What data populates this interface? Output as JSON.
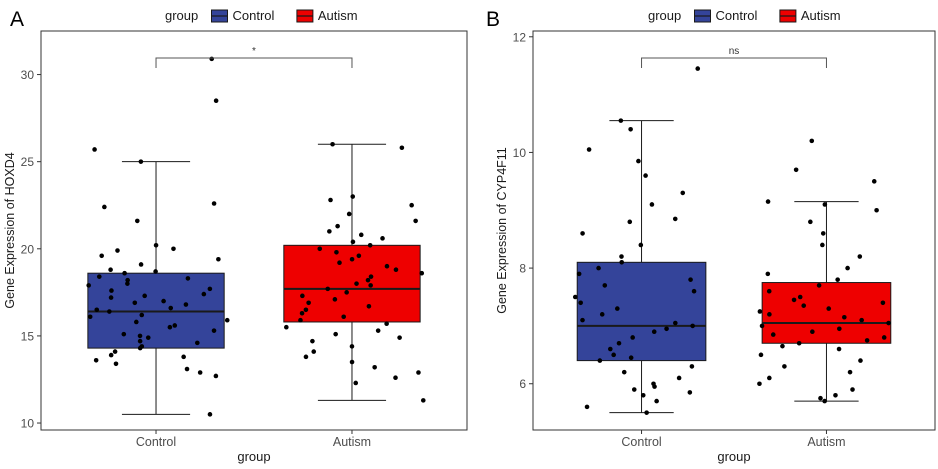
{
  "chart_data": [
    {
      "panel_label": "A",
      "type": "box",
      "xlabel": "group",
      "ylabel": "Gene Expression of HOXD4",
      "legend": {
        "title": "group",
        "placement": "top",
        "entries": [
          "Control",
          "Autism"
        ]
      },
      "categories": [
        "Control",
        "Autism"
      ],
      "colors": [
        "#34449a",
        "#ee0000"
      ],
      "ylim": [
        9.6,
        32.5
      ],
      "yticks": [
        10,
        15,
        20,
        25,
        30
      ],
      "significance": "*",
      "boxes": [
        {
          "name": "Control",
          "min": 10.5,
          "q1": 14.3,
          "median": 16.4,
          "q3": 18.6,
          "max": 25.0
        },
        {
          "name": "Autism",
          "min": 11.3,
          "q1": 15.8,
          "median": 17.7,
          "q3": 20.2,
          "max": 26.0
        }
      ],
      "points": [
        [
          30.9,
          28.5,
          25.7,
          25.0,
          22.6,
          22.4,
          21.6,
          20.2,
          20.0,
          19.9,
          19.6,
          19.4,
          19.1,
          18.8,
          18.7,
          18.6,
          18.4,
          18.3,
          18.2,
          18.0,
          17.9,
          17.7,
          17.6,
          17.4,
          17.3,
          17.2,
          17.0,
          16.9,
          16.8,
          16.6,
          16.5,
          16.4,
          16.2,
          16.1,
          15.9,
          15.8,
          15.6,
          15.5,
          15.3,
          15.1,
          15.0,
          14.9,
          14.7,
          14.6,
          14.4,
          14.3,
          14.1,
          13.9,
          13.8,
          13.6,
          13.4,
          13.1,
          12.9,
          12.7,
          10.5
        ],
        [
          26.0,
          25.8,
          23.0,
          22.8,
          22.5,
          22.0,
          21.6,
          21.3,
          21.0,
          20.8,
          20.6,
          20.4,
          20.2,
          20.0,
          19.8,
          19.6,
          19.4,
          19.2,
          19.0,
          18.8,
          18.6,
          18.4,
          18.2,
          18.0,
          17.9,
          17.7,
          17.5,
          17.3,
          17.1,
          16.9,
          16.7,
          16.5,
          16.3,
          16.1,
          15.9,
          15.7,
          15.5,
          15.3,
          15.1,
          14.9,
          14.7,
          14.4,
          14.1,
          13.8,
          13.5,
          13.2,
          12.9,
          12.6,
          12.3,
          11.3
        ]
      ]
    },
    {
      "panel_label": "B",
      "type": "box",
      "xlabel": "group",
      "ylabel": "Gene Expression of CYP4F11",
      "legend": {
        "title": "group",
        "placement": "top",
        "entries": [
          "Control",
          "Autism"
        ]
      },
      "categories": [
        "Control",
        "Autism"
      ],
      "colors": [
        "#34449a",
        "#ee0000"
      ],
      "ylim": [
        5.2,
        12.1
      ],
      "yticks": [
        6,
        8,
        10,
        12
      ],
      "significance": "ns",
      "boxes": [
        {
          "name": "Control",
          "min": 5.5,
          "q1": 6.4,
          "median": 7.0,
          "q3": 8.1,
          "max": 10.55
        },
        {
          "name": "Autism",
          "min": 5.7,
          "q1": 6.7,
          "median": 7.05,
          "q3": 7.75,
          "max": 9.15
        }
      ],
      "points": [
        [
          11.45,
          10.55,
          10.4,
          10.05,
          9.85,
          9.6,
          9.3,
          9.1,
          8.85,
          8.8,
          8.6,
          8.4,
          8.2,
          8.1,
          8.0,
          7.9,
          7.8,
          7.7,
          7.6,
          7.5,
          7.4,
          7.3,
          7.2,
          7.1,
          7.05,
          7.0,
          6.95,
          6.9,
          6.8,
          6.7,
          6.6,
          6.5,
          6.45,
          6.4,
          6.3,
          6.2,
          6.1,
          6.0,
          5.95,
          5.9,
          5.85,
          5.8,
          5.7,
          5.6,
          5.5
        ],
        [
          10.2,
          9.7,
          9.5,
          9.15,
          9.1,
          9.0,
          8.8,
          8.6,
          8.4,
          8.2,
          8.0,
          7.9,
          7.8,
          7.7,
          7.6,
          7.5,
          7.45,
          7.4,
          7.35,
          7.3,
          7.25,
          7.2,
          7.15,
          7.1,
          7.05,
          7.0,
          6.95,
          6.9,
          6.85,
          6.8,
          6.75,
          6.7,
          6.65,
          6.6,
          6.5,
          6.4,
          6.3,
          6.2,
          6.1,
          6.0,
          5.9,
          5.8,
          5.75,
          5.7
        ]
      ]
    }
  ]
}
